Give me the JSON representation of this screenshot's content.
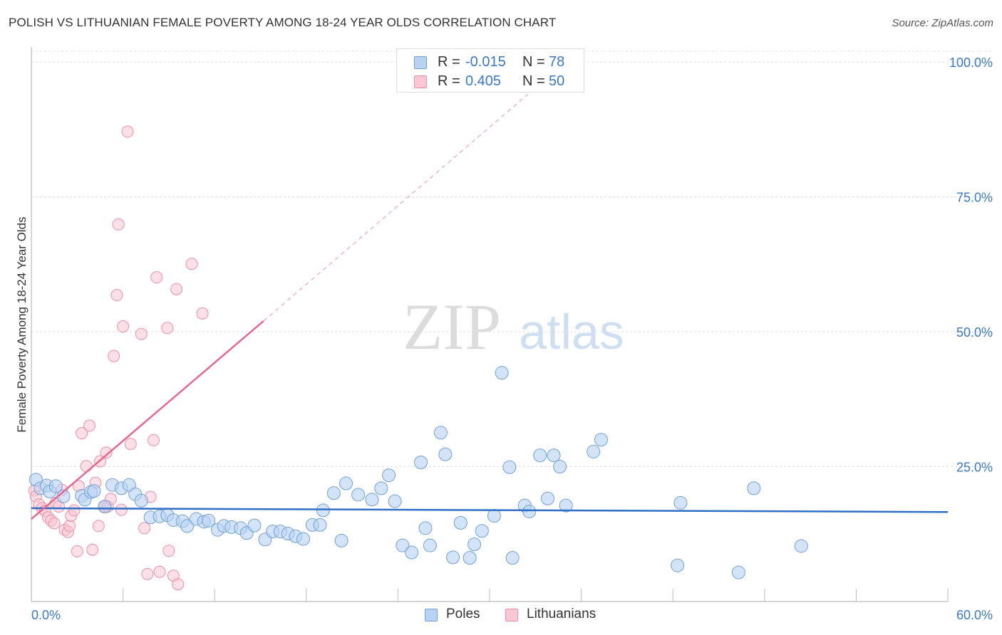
{
  "title": "POLISH VS LITHUANIAN FEMALE POVERTY AMONG 18-24 YEAR OLDS CORRELATION CHART",
  "source": "Source: ZipAtlas.com",
  "watermark": {
    "zip": "ZIP",
    "atlas": "atlas"
  },
  "legend_top": [
    {
      "r_label": "R =",
      "r_value": "-0.015",
      "n_label": "N =",
      "n_value": "78"
    },
    {
      "r_label": "R =",
      "r_value": "0.405",
      "n_label": "N =",
      "n_value": "50"
    }
  ],
  "legend_bottom": [
    {
      "label": "Poles"
    },
    {
      "label": "Lithuanians"
    }
  ],
  "colors": {
    "poles_fill": "#b8d2f3",
    "poles_stroke": "#6fa0db",
    "poles_line": "#2f6fc6",
    "lith_fill": "#f9c6d4",
    "lith_stroke": "#ea8fab",
    "lith_line": "#e4688f",
    "axis_text": "#3a78c9",
    "grid": "#dddddd"
  },
  "chart_data": {
    "type": "scatter",
    "title": "POLISH VS LITHUANIAN FEMALE POVERTY AMONG 18-24 YEAR OLDS CORRELATION CHART",
    "xlabel": "",
    "ylabel": "Female Poverty Among 18-24 Year Olds",
    "xlim": [
      0,
      60
    ],
    "ylim": [
      0,
      102
    ],
    "x_tick_labels": [
      "0.0%",
      "60.0%"
    ],
    "y_ticks": [
      25,
      50,
      75,
      100
    ],
    "y_tick_labels": [
      "25.0%",
      "50.0%",
      "75.0%",
      "100.0%"
    ],
    "grid": true,
    "legend_position": "top-center",
    "series": [
      {
        "name": "Poles",
        "r": -0.015,
        "n": 78,
        "trend": {
          "x": [
            0,
            60
          ],
          "y": [
            17.3,
            16.6
          ],
          "style": "solid"
        },
        "points": [
          [
            0.3,
            22.6
          ],
          [
            0.6,
            21.0
          ],
          [
            1.0,
            21.5
          ],
          [
            1.2,
            20.4
          ],
          [
            1.6,
            21.4
          ],
          [
            2.1,
            19.5
          ],
          [
            3.3,
            19.6
          ],
          [
            3.5,
            18.9
          ],
          [
            3.9,
            20.3
          ],
          [
            4.1,
            20.5
          ],
          [
            4.8,
            17.6
          ],
          [
            5.3,
            21.6
          ],
          [
            5.9,
            21.0
          ],
          [
            6.4,
            21.6
          ],
          [
            6.8,
            19.9
          ],
          [
            7.2,
            18.7
          ],
          [
            7.8,
            15.6
          ],
          [
            8.4,
            15.8
          ],
          [
            8.9,
            16.0
          ],
          [
            9.3,
            15.1
          ],
          [
            9.9,
            14.9
          ],
          [
            10.2,
            14.0
          ],
          [
            10.8,
            15.3
          ],
          [
            11.3,
            14.8
          ],
          [
            11.6,
            15.0
          ],
          [
            12.2,
            13.3
          ],
          [
            12.6,
            14.0
          ],
          [
            13.1,
            13.8
          ],
          [
            13.7,
            13.6
          ],
          [
            14.1,
            12.7
          ],
          [
            14.6,
            14.1
          ],
          [
            15.3,
            11.5
          ],
          [
            15.8,
            13.0
          ],
          [
            16.3,
            13.0
          ],
          [
            16.8,
            12.6
          ],
          [
            17.3,
            12.1
          ],
          [
            17.8,
            11.6
          ],
          [
            18.4,
            14.2
          ],
          [
            18.9,
            14.2
          ],
          [
            19.1,
            16.9
          ],
          [
            19.8,
            20.1
          ],
          [
            20.3,
            11.3
          ],
          [
            20.6,
            21.9
          ],
          [
            21.4,
            19.8
          ],
          [
            22.3,
            18.9
          ],
          [
            22.9,
            21.0
          ],
          [
            23.4,
            23.4
          ],
          [
            23.8,
            18.6
          ],
          [
            24.3,
            10.4
          ],
          [
            24.9,
            9.1
          ],
          [
            25.5,
            25.8
          ],
          [
            25.8,
            13.6
          ],
          [
            26.1,
            10.4
          ],
          [
            26.8,
            31.3
          ],
          [
            27.1,
            27.3
          ],
          [
            27.6,
            8.2
          ],
          [
            28.1,
            14.6
          ],
          [
            28.7,
            8.1
          ],
          [
            29.0,
            10.6
          ],
          [
            29.5,
            13.1
          ],
          [
            30.3,
            15.9
          ],
          [
            30.8,
            42.4
          ],
          [
            31.3,
            24.9
          ],
          [
            31.5,
            8.1
          ],
          [
            32.3,
            17.8
          ],
          [
            32.6,
            16.7
          ],
          [
            33.3,
            27.1
          ],
          [
            33.8,
            19.1
          ],
          [
            34.2,
            27.1
          ],
          [
            34.6,
            25.0
          ],
          [
            35.0,
            17.8
          ],
          [
            36.8,
            27.8
          ],
          [
            37.3,
            30.0
          ],
          [
            42.5,
            18.3
          ],
          [
            42.3,
            6.7
          ],
          [
            46.3,
            5.4
          ],
          [
            47.3,
            21.0
          ],
          [
            50.4,
            10.3
          ]
        ]
      },
      {
        "name": "Lithuanians",
        "r": 0.405,
        "n": 50,
        "trend_solid": {
          "x": [
            0,
            15.2
          ],
          "y": [
            15.3,
            52.0
          ]
        },
        "trend_dashed": {
          "x": [
            15.2,
            32.5
          ],
          "y": [
            52.0,
            94.0
          ]
        },
        "points": [
          [
            0.2,
            20.6
          ],
          [
            0.3,
            19.5
          ],
          [
            0.5,
            18.0
          ],
          [
            0.7,
            17.3
          ],
          [
            0.9,
            16.8
          ],
          [
            1.1,
            15.6
          ],
          [
            1.3,
            15.0
          ],
          [
            1.5,
            14.5
          ],
          [
            1.6,
            18.3
          ],
          [
            1.8,
            17.6
          ],
          [
            2.0,
            20.7
          ],
          [
            2.2,
            13.3
          ],
          [
            2.4,
            12.9
          ],
          [
            2.5,
            14.0
          ],
          [
            2.6,
            15.9
          ],
          [
            2.8,
            16.9
          ],
          [
            3.0,
            9.3
          ],
          [
            3.1,
            21.4
          ],
          [
            3.3,
            31.2
          ],
          [
            3.6,
            25.1
          ],
          [
            3.8,
            32.6
          ],
          [
            4.0,
            9.6
          ],
          [
            4.2,
            22.0
          ],
          [
            4.4,
            14.0
          ],
          [
            4.5,
            26.0
          ],
          [
            4.8,
            17.6
          ],
          [
            4.9,
            27.6
          ],
          [
            5.0,
            17.6
          ],
          [
            5.2,
            19.0
          ],
          [
            5.4,
            45.5
          ],
          [
            5.6,
            56.8
          ],
          [
            5.7,
            69.9
          ],
          [
            5.9,
            17.0
          ],
          [
            6.0,
            51.0
          ],
          [
            6.3,
            87.1
          ],
          [
            6.5,
            29.2
          ],
          [
            7.2,
            49.6
          ],
          [
            7.4,
            13.6
          ],
          [
            7.6,
            5.1
          ],
          [
            7.8,
            19.4
          ],
          [
            8.0,
            29.9
          ],
          [
            8.2,
            60.1
          ],
          [
            8.4,
            5.5
          ],
          [
            8.9,
            50.7
          ],
          [
            9.0,
            9.4
          ],
          [
            9.3,
            4.8
          ],
          [
            9.5,
            57.9
          ],
          [
            9.6,
            3.2
          ],
          [
            10.5,
            62.6
          ],
          [
            11.2,
            53.4
          ]
        ]
      }
    ]
  }
}
